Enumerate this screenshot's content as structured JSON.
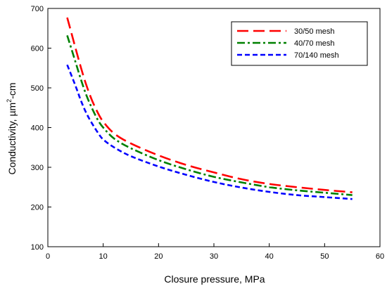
{
  "chart_data": {
    "type": "line",
    "title": "",
    "xlabel": "Closure pressure, MPa",
    "ylabel_parts": [
      "Conductivity, µm",
      "2",
      "-cm"
    ],
    "xlim": [
      0,
      60
    ],
    "ylim": [
      100,
      700
    ],
    "xticks": [
      0,
      10,
      20,
      30,
      40,
      50,
      60
    ],
    "yticks": [
      100,
      200,
      300,
      400,
      500,
      600,
      700
    ],
    "grid": false,
    "legend_position": "top-right",
    "series": [
      {
        "name": "30/50 mesh",
        "color": "#ff0000",
        "dash": "long-dash",
        "points": [
          [
            3.5,
            677
          ],
          [
            5,
            600
          ],
          [
            6,
            550
          ],
          [
            7,
            505
          ],
          [
            8,
            468
          ],
          [
            9,
            438
          ],
          [
            10,
            415
          ],
          [
            12,
            385
          ],
          [
            15,
            360
          ],
          [
            20,
            330
          ],
          [
            25,
            306
          ],
          [
            30,
            287
          ],
          [
            35,
            270
          ],
          [
            40,
            258
          ],
          [
            45,
            250
          ],
          [
            50,
            243
          ],
          [
            55,
            237
          ]
        ]
      },
      {
        "name": "40/70 mesh",
        "color": "#008000",
        "dash": "dash-dot",
        "points": [
          [
            3.5,
            632
          ],
          [
            5,
            565
          ],
          [
            6,
            520
          ],
          [
            7,
            480
          ],
          [
            8,
            448
          ],
          [
            9,
            420
          ],
          [
            10,
            400
          ],
          [
            12,
            372
          ],
          [
            15,
            348
          ],
          [
            20,
            318
          ],
          [
            25,
            295
          ],
          [
            30,
            276
          ],
          [
            35,
            262
          ],
          [
            40,
            250
          ],
          [
            45,
            242
          ],
          [
            50,
            236
          ],
          [
            55,
            230
          ]
        ]
      },
      {
        "name": "70/140 mesh",
        "color": "#0000ff",
        "dash": "short-dash",
        "points": [
          [
            3.5,
            558
          ],
          [
            5,
            505
          ],
          [
            6,
            467
          ],
          [
            7,
            435
          ],
          [
            8,
            410
          ],
          [
            9,
            388
          ],
          [
            10,
            370
          ],
          [
            12,
            350
          ],
          [
            15,
            328
          ],
          [
            20,
            302
          ],
          [
            25,
            281
          ],
          [
            30,
            263
          ],
          [
            35,
            249
          ],
          [
            40,
            238
          ],
          [
            45,
            230
          ],
          [
            50,
            225
          ],
          [
            55,
            220
          ]
        ]
      }
    ]
  }
}
